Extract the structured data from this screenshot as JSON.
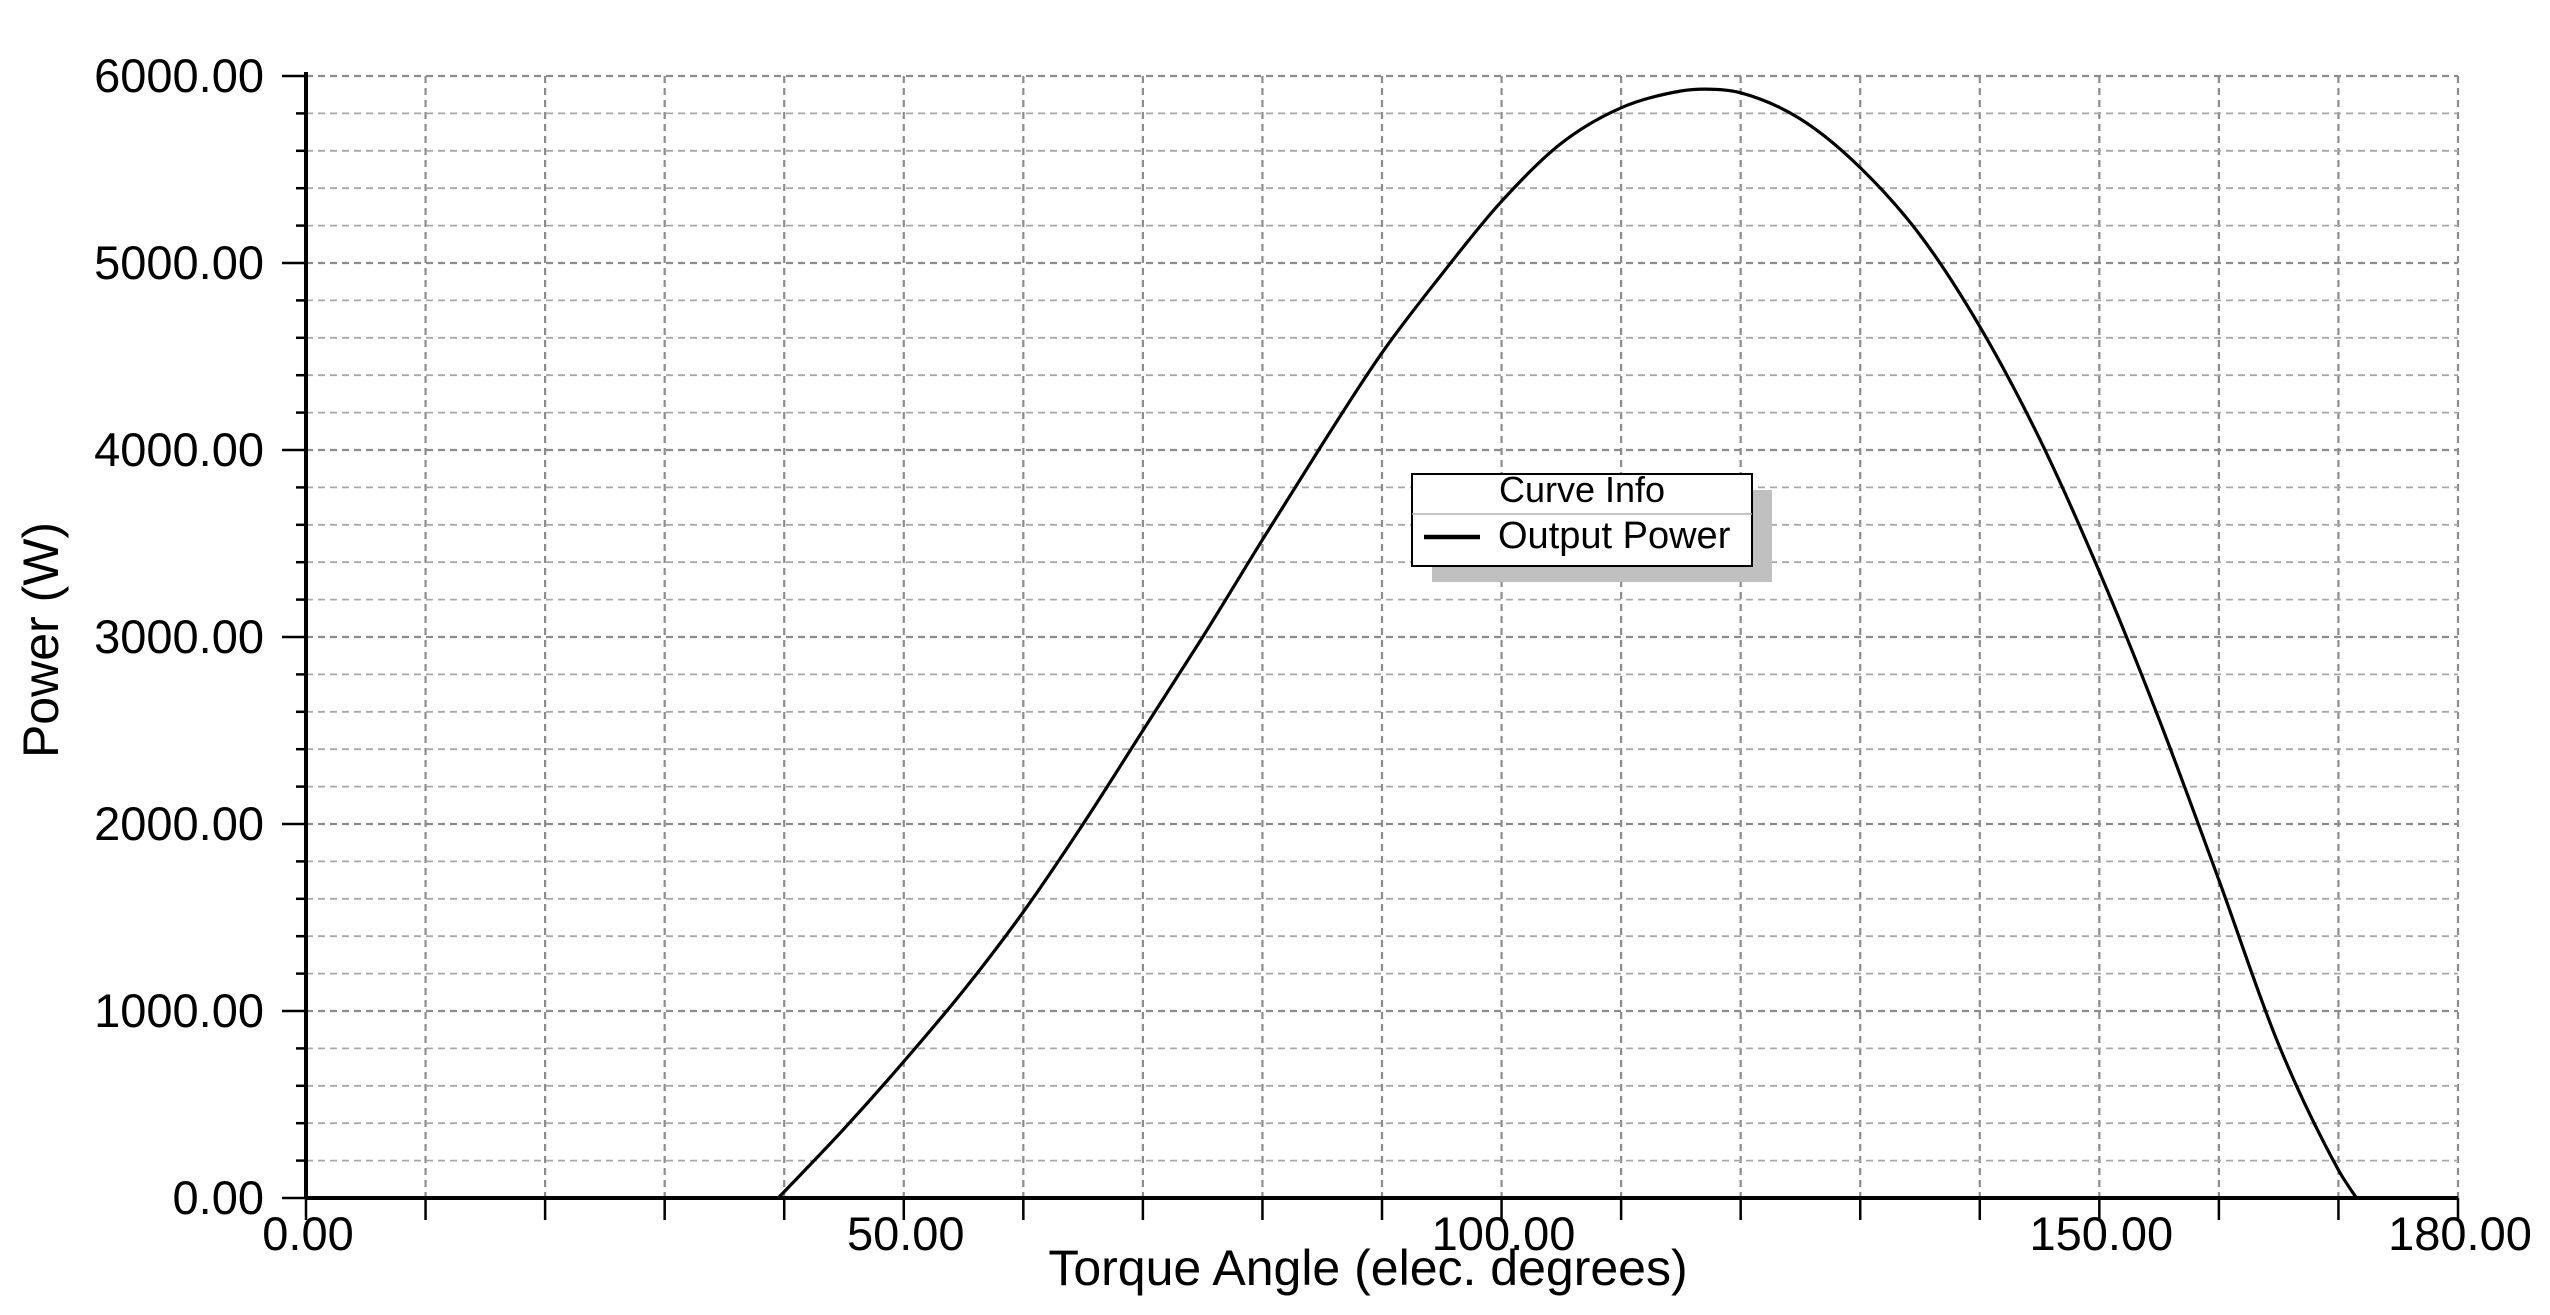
{
  "chart_data": {
    "type": "line",
    "xlabel": "Torque Angle (elec. degrees)",
    "ylabel": "Power (W)",
    "xlim": [
      0,
      180
    ],
    "ylim": [
      0,
      6000
    ],
    "x_ticks": [
      0,
      50,
      100,
      150,
      180
    ],
    "x_tick_labels": [
      "0.00",
      "50.00",
      "100.00",
      "150.00",
      "180.00"
    ],
    "y_ticks": [
      0,
      1000,
      2000,
      3000,
      4000,
      5000,
      6000
    ],
    "y_tick_labels": [
      "0.00",
      "1000.00",
      "2000.00",
      "3000.00",
      "4000.00",
      "5000.00",
      "6000.00"
    ],
    "grid": true,
    "legend": {
      "title": "Curve Info",
      "placement": "center",
      "entries": [
        "Output Power"
      ]
    },
    "series": [
      {
        "name": "Output Power",
        "color": "#000000",
        "x": [
          39.5,
          45,
          50,
          55,
          60,
          65,
          70,
          75,
          80,
          85,
          90,
          95,
          100,
          105,
          110,
          115,
          117,
          120,
          125,
          130,
          135,
          140,
          145,
          150,
          155,
          160,
          165,
          170,
          171.5
        ],
        "y": [
          0,
          370,
          730,
          1110,
          1530,
          2000,
          2500,
          3000,
          3520,
          4030,
          4520,
          4940,
          5330,
          5640,
          5830,
          5920,
          5930,
          5910,
          5770,
          5510,
          5150,
          4660,
          4060,
          3350,
          2560,
          1700,
          820,
          150,
          0
        ]
      }
    ]
  }
}
